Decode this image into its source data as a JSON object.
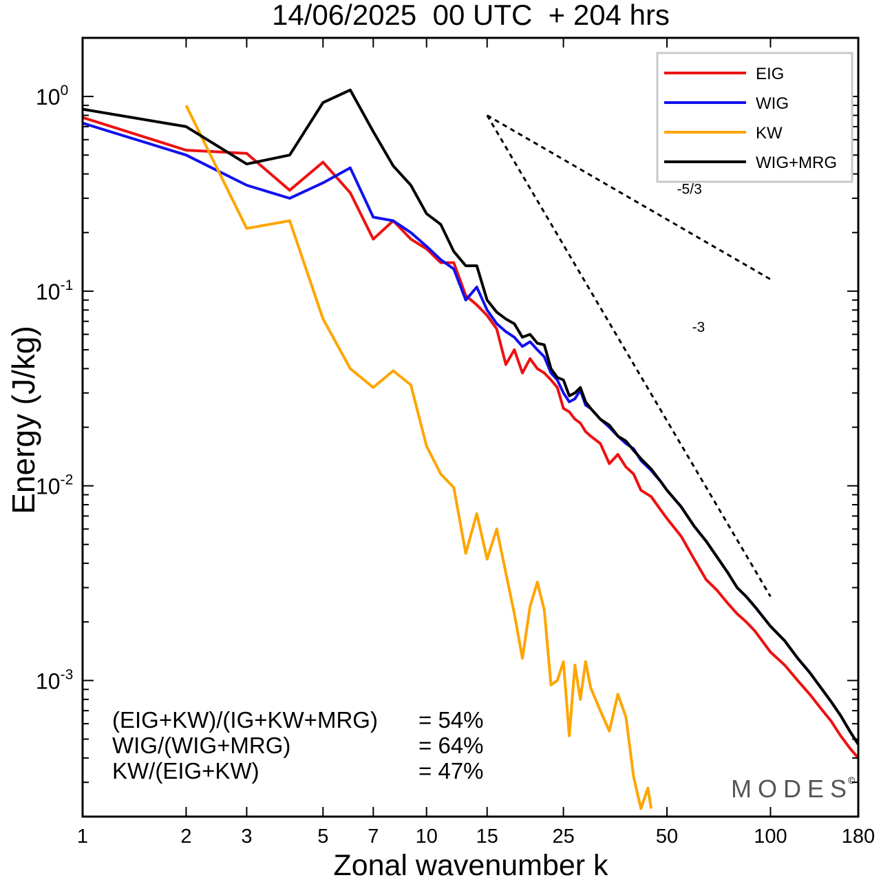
{
  "chart_data": {
    "type": "line",
    "title": "14/06/2025  00 UTC  + 204 hrs",
    "xlabel": "Zonal wavenumber k",
    "ylabel": "Energy (J/kg)",
    "xscale": "log",
    "yscale": "log",
    "xlim": [
      1,
      180
    ],
    "ylim": [
      0.0002,
      2.0
    ],
    "x_ticks": [
      1,
      2,
      3,
      5,
      7,
      10,
      15,
      25,
      50,
      100,
      180
    ],
    "x_tick_labels": [
      "1",
      "2",
      "3",
      "5",
      "7",
      "10",
      "15",
      "25",
      "50",
      "100",
      "180"
    ],
    "y_major_ticks": [
      {
        "value": 1,
        "base": "10",
        "exp": "0"
      },
      {
        "value": 0.1,
        "base": "10",
        "exp": "-1"
      },
      {
        "value": 0.01,
        "base": "10",
        "exp": "-2"
      },
      {
        "value": 0.001,
        "base": "10",
        "exp": "-3"
      }
    ],
    "grid": false,
    "legend_position": "top-right",
    "series": [
      {
        "name": "EIG",
        "color": "#ee1111",
        "points": [
          [
            1,
            0.78
          ],
          [
            2,
            0.53
          ],
          [
            3,
            0.51
          ],
          [
            4,
            0.33
          ],
          [
            5,
            0.46
          ],
          [
            6,
            0.32
          ],
          [
            7,
            0.185
          ],
          [
            8,
            0.23
          ],
          [
            9,
            0.185
          ],
          [
            10,
            0.165
          ],
          [
            11,
            0.14
          ],
          [
            12,
            0.14
          ],
          [
            13,
            0.095
          ],
          [
            14,
            0.085
          ],
          [
            15,
            0.075
          ],
          [
            16,
            0.064
          ],
          [
            17,
            0.042
          ],
          [
            18,
            0.05
          ],
          [
            19,
            0.038
          ],
          [
            20,
            0.045
          ],
          [
            21,
            0.04
          ],
          [
            22,
            0.038
          ],
          [
            23,
            0.035
          ],
          [
            24,
            0.032
          ],
          [
            25,
            0.025
          ],
          [
            26,
            0.024
          ],
          [
            27,
            0.022
          ],
          [
            28,
            0.021
          ],
          [
            29,
            0.019
          ],
          [
            30,
            0.018
          ],
          [
            32,
            0.0165
          ],
          [
            34,
            0.013
          ],
          [
            36,
            0.0145
          ],
          [
            38,
            0.0125
          ],
          [
            40,
            0.0115
          ],
          [
            42,
            0.0095
          ],
          [
            45,
            0.0088
          ],
          [
            48,
            0.0075
          ],
          [
            50,
            0.0068
          ],
          [
            55,
            0.0055
          ],
          [
            60,
            0.0042
          ],
          [
            65,
            0.0033
          ],
          [
            70,
            0.0029
          ],
          [
            75,
            0.0025
          ],
          [
            80,
            0.0022
          ],
          [
            85,
            0.002
          ],
          [
            90,
            0.0018
          ],
          [
            100,
            0.0014
          ],
          [
            110,
            0.0012
          ],
          [
            120,
            0.001
          ],
          [
            130,
            0.00085
          ],
          [
            140,
            0.00072
          ],
          [
            150,
            0.00062
          ],
          [
            160,
            0.00052
          ],
          [
            170,
            0.00045
          ],
          [
            180,
            0.0004
          ]
        ]
      },
      {
        "name": "WIG",
        "color": "#1111ee",
        "points": [
          [
            1,
            0.73
          ],
          [
            2,
            0.5
          ],
          [
            3,
            0.35
          ],
          [
            4,
            0.3
          ],
          [
            5,
            0.36
          ],
          [
            6,
            0.43
          ],
          [
            7,
            0.24
          ],
          [
            8,
            0.23
          ],
          [
            9,
            0.2
          ],
          [
            10,
            0.17
          ],
          [
            11,
            0.145
          ],
          [
            12,
            0.13
          ],
          [
            13,
            0.09
          ],
          [
            14,
            0.105
          ],
          [
            15,
            0.08
          ],
          [
            16,
            0.068
          ],
          [
            17,
            0.062
          ],
          [
            18,
            0.058
          ],
          [
            19,
            0.052
          ],
          [
            20,
            0.055
          ],
          [
            21,
            0.05
          ],
          [
            22,
            0.046
          ],
          [
            23,
            0.038
          ],
          [
            24,
            0.035
          ],
          [
            25,
            0.03
          ],
          [
            26,
            0.027
          ],
          [
            27,
            0.028
          ],
          [
            28,
            0.031
          ],
          [
            29,
            0.026
          ],
          [
            30,
            0.025
          ],
          [
            32,
            0.022
          ],
          [
            34,
            0.02
          ],
          [
            36,
            0.018
          ],
          [
            38,
            0.0165
          ],
          [
            40,
            0.0155
          ],
          [
            42,
            0.0135
          ],
          [
            45,
            0.012
          ],
          [
            48,
            0.0105
          ],
          [
            50,
            0.0095
          ],
          [
            55,
            0.0078
          ],
          [
            60,
            0.0062
          ],
          [
            65,
            0.0052
          ],
          [
            70,
            0.0043
          ],
          [
            75,
            0.0036
          ],
          [
            80,
            0.003
          ],
          [
            85,
            0.0027
          ],
          [
            90,
            0.0024
          ],
          [
            100,
            0.0019
          ],
          [
            110,
            0.0016
          ],
          [
            120,
            0.0013
          ],
          [
            130,
            0.0011
          ],
          [
            140,
            0.00092
          ],
          [
            150,
            0.00078
          ],
          [
            160,
            0.00066
          ],
          [
            170,
            0.00055
          ],
          [
            180,
            0.00047
          ]
        ]
      },
      {
        "name": "KW",
        "color": "#ffa500",
        "points": [
          [
            2,
            0.9
          ],
          [
            3,
            0.21
          ],
          [
            4,
            0.23
          ],
          [
            5,
            0.072
          ],
          [
            6,
            0.04
          ],
          [
            7,
            0.032
          ],
          [
            8,
            0.039
          ],
          [
            9,
            0.033
          ],
          [
            10,
            0.016
          ],
          [
            11,
            0.0115
          ],
          [
            12,
            0.0098
          ],
          [
            13,
            0.0045
          ],
          [
            14,
            0.0072
          ],
          [
            15,
            0.0042
          ],
          [
            16,
            0.006
          ],
          [
            18,
            0.0022
          ],
          [
            19,
            0.0013
          ],
          [
            20,
            0.0024
          ],
          [
            21,
            0.0032
          ],
          [
            22,
            0.0023
          ],
          [
            23,
            0.00095
          ],
          [
            24,
            0.001
          ],
          [
            25,
            0.00125
          ],
          [
            26,
            0.00052
          ],
          [
            27,
            0.0012
          ],
          [
            28,
            0.0008
          ],
          [
            29,
            0.00125
          ],
          [
            30,
            0.00092
          ],
          [
            32,
            0.0007
          ],
          [
            34,
            0.00055
          ],
          [
            36,
            0.00085
          ],
          [
            38,
            0.00065
          ],
          [
            40,
            0.00032
          ],
          [
            42,
            0.00022
          ],
          [
            44,
            0.00028
          ],
          [
            45,
            0.00022
          ]
        ]
      },
      {
        "name": "WIG+MRG",
        "color": "#000000",
        "points": [
          [
            1,
            0.86
          ],
          [
            2,
            0.7
          ],
          [
            3,
            0.45
          ],
          [
            4,
            0.5
          ],
          [
            5,
            0.93
          ],
          [
            6,
            1.08
          ],
          [
            7,
            0.66
          ],
          [
            8,
            0.44
          ],
          [
            9,
            0.35
          ],
          [
            10,
            0.25
          ],
          [
            11,
            0.22
          ],
          [
            12,
            0.16
          ],
          [
            13,
            0.135
          ],
          [
            14,
            0.135
          ],
          [
            15,
            0.09
          ],
          [
            16,
            0.078
          ],
          [
            17,
            0.072
          ],
          [
            18,
            0.068
          ],
          [
            19,
            0.058
          ],
          [
            20,
            0.06
          ],
          [
            21,
            0.054
          ],
          [
            22,
            0.053
          ],
          [
            23,
            0.04
          ],
          [
            24,
            0.036
          ],
          [
            25,
            0.035
          ],
          [
            26,
            0.029
          ],
          [
            27,
            0.03
          ],
          [
            28,
            0.032
          ],
          [
            29,
            0.027
          ],
          [
            30,
            0.025
          ],
          [
            32,
            0.022
          ],
          [
            34,
            0.0205
          ],
          [
            36,
            0.018
          ],
          [
            38,
            0.017
          ],
          [
            40,
            0.0152
          ],
          [
            42,
            0.0138
          ],
          [
            45,
            0.0122
          ],
          [
            48,
            0.0105
          ],
          [
            50,
            0.0095
          ],
          [
            55,
            0.0078
          ],
          [
            60,
            0.0062
          ],
          [
            65,
            0.0052
          ],
          [
            70,
            0.0043
          ],
          [
            75,
            0.0036
          ],
          [
            80,
            0.003
          ],
          [
            85,
            0.0027
          ],
          [
            90,
            0.0024
          ],
          [
            100,
            0.0019
          ],
          [
            110,
            0.0016
          ],
          [
            120,
            0.0013
          ],
          [
            130,
            0.0011
          ],
          [
            140,
            0.00092
          ],
          [
            150,
            0.00078
          ],
          [
            160,
            0.00066
          ],
          [
            170,
            0.00055
          ],
          [
            180,
            0.00047
          ]
        ]
      }
    ],
    "reference_slopes": [
      {
        "label": "-5/3",
        "x": [
          15,
          100
        ],
        "y": [
          0.8,
          0.115
        ]
      },
      {
        "label": "-3",
        "x": [
          15,
          100
        ],
        "y": [
          0.8,
          0.0027
        ]
      }
    ],
    "stats": [
      {
        "label": "(EIG+KW)/(IG+KW+MRG)",
        "value": "= 54%"
      },
      {
        "label": "WIG/(WIG+MRG)",
        "value": "= 64%"
      },
      {
        "label": "KW/(EIG+KW)",
        "value": "= 47%"
      }
    ],
    "watermark": "MODES",
    "watermark_mark": "©"
  }
}
